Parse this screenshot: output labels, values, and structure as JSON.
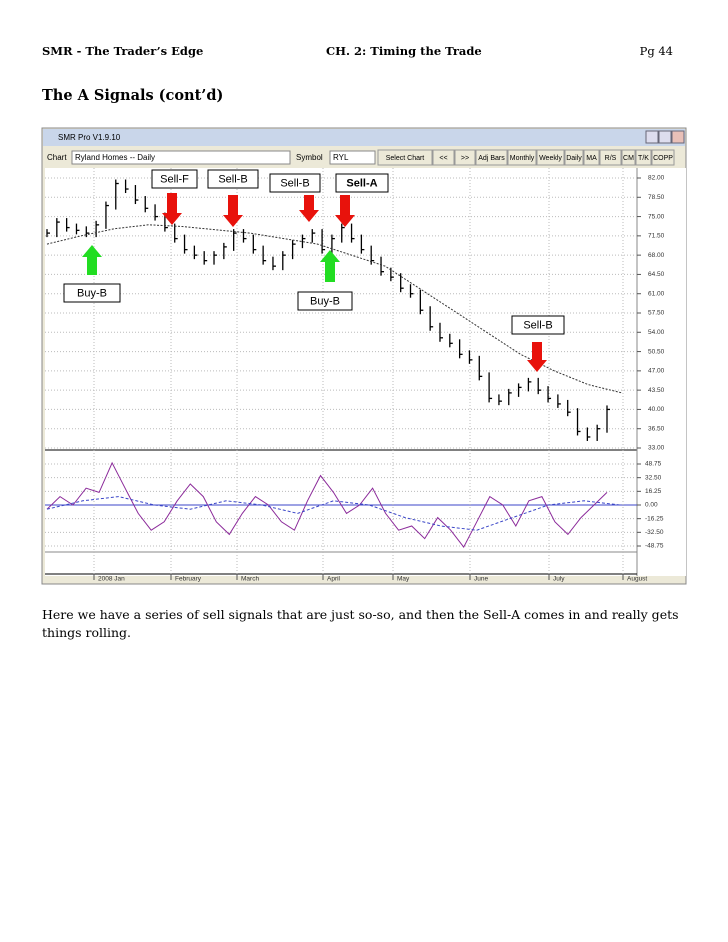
{
  "header": {
    "left": "SMR - The Trader’s Edge",
    "center": "CH. 2: Timing the Trade",
    "right": "Pg 44"
  },
  "title": "The A Signals (cont’d)",
  "window": {
    "title": "SMR Pro V1.9.10",
    "chart_label": "Chart",
    "chart_name": "Ryland Homes -- Daily",
    "symbol_label": "Symbol",
    "symbol": "RYL",
    "buttons": [
      "Select Chart",
      "<<",
      ">>",
      "Adj Bars",
      "Monthly",
      "Weekly",
      "Daily",
      "MA",
      "R/S",
      "CM",
      "T/K",
      "COPP"
    ]
  },
  "chart_data": {
    "type": "stock",
    "closes": [
      72,
      74,
      73,
      72.5,
      72,
      73.5,
      77,
      81,
      80,
      78,
      76.5,
      75,
      73,
      71,
      69,
      68,
      67,
      68,
      69.5,
      72,
      71,
      69,
      67,
      66,
      68,
      70,
      71,
      72,
      69,
      71,
      73,
      71,
      69,
      67,
      65,
      64,
      62,
      61,
      58,
      55,
      53,
      52,
      50,
      49,
      46,
      42,
      41.5,
      43,
      44,
      45,
      43.5,
      42,
      41,
      39.5,
      36,
      35,
      36.5,
      40
    ],
    "moving_average": [
      70,
      71.5,
      72.8,
      73.5,
      73.2,
      72.6,
      72,
      71,
      70,
      68,
      66,
      62,
      58,
      54,
      50,
      47,
      44.5,
      43
    ],
    "ylim": [
      33,
      82
    ],
    "yticks": [
      {
        "value": 82,
        "label": "82.00"
      },
      {
        "value": 78.5,
        "label": "78.50"
      },
      {
        "value": 75,
        "label": "75.00"
      },
      {
        "value": 71.5,
        "label": "71.50"
      },
      {
        "value": 68,
        "label": "68.00"
      },
      {
        "value": 64.5,
        "label": "64.50"
      },
      {
        "value": 61,
        "label": "61.00"
      },
      {
        "value": 57.5,
        "label": "57.50"
      },
      {
        "value": 54,
        "label": "54.00"
      },
      {
        "value": 50.5,
        "label": "50.50"
      },
      {
        "value": 47,
        "label": "47.00"
      },
      {
        "value": 43.5,
        "label": "43.50"
      },
      {
        "value": 40,
        "label": "40.00"
      },
      {
        "value": 36.5,
        "label": "36.50"
      },
      {
        "value": 33,
        "label": "33.00"
      }
    ],
    "oscillator": {
      "values": [
        -5,
        10,
        0,
        20,
        15,
        50,
        20,
        -10,
        -30,
        -20,
        5,
        25,
        10,
        -20,
        -35,
        -10,
        10,
        0,
        -20,
        -30,
        5,
        35,
        15,
        -10,
        0,
        20,
        -10,
        -30,
        -25,
        -40,
        -15,
        -30,
        -50,
        -20,
        10,
        0,
        -25,
        5,
        10,
        -20,
        -35,
        -15,
        0,
        15
      ],
      "signal": [
        -5,
        5,
        10,
        0,
        -5,
        5,
        0,
        -10,
        5,
        0,
        -15,
        -25,
        -30,
        -15,
        0,
        5,
        0
      ],
      "ylim": [
        -48.75,
        48.75
      ],
      "yticks": [
        {
          "value": 48.75,
          "label": "48.75"
        },
        {
          "value": 32.5,
          "label": "32.50"
        },
        {
          "value": 16.25,
          "label": "16.25"
        },
        {
          "value": 0,
          "label": "0.00"
        },
        {
          "value": -16.25,
          "label": "-16.25"
        },
        {
          "value": -32.5,
          "label": "-32.50"
        },
        {
          "value": -48.75,
          "label": "-48.75"
        }
      ],
      "color": "#8b2a9a",
      "signal_color": "#3b46c8"
    },
    "months": [
      "2008 Jan",
      "February",
      "March",
      "April",
      "May",
      "June",
      "July",
      "August"
    ],
    "grid": true,
    "signals": [
      {
        "label": "Sell-F",
        "direction": "down",
        "color": "#e8120c"
      },
      {
        "label": "Sell-B",
        "direction": "down",
        "color": "#e8120c"
      },
      {
        "label": "Sell-B",
        "direction": "down",
        "color": "#e8120c"
      },
      {
        "label": "Sell-A",
        "direction": "down",
        "color": "#e8120c"
      },
      {
        "label": "Buy-B",
        "direction": "up",
        "color": "#22dd22"
      },
      {
        "label": "Buy-B",
        "direction": "up",
        "color": "#22dd22"
      },
      {
        "label": "Sell-B",
        "direction": "down",
        "color": "#e8120c"
      }
    ]
  },
  "caption": "Here we have a series of sell signals that are just so-so, and then the Sell-A comes in and really gets things rolling."
}
